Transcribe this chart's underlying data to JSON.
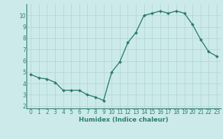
{
  "x": [
    0,
    1,
    2,
    3,
    4,
    5,
    6,
    7,
    8,
    9,
    10,
    11,
    12,
    13,
    14,
    15,
    16,
    17,
    18,
    19,
    20,
    21,
    22,
    23
  ],
  "y": [
    4.8,
    4.5,
    4.4,
    4.1,
    3.4,
    3.4,
    3.4,
    3.0,
    2.8,
    2.5,
    5.0,
    5.9,
    7.6,
    8.5,
    10.0,
    10.2,
    10.4,
    10.2,
    10.4,
    10.2,
    9.2,
    7.9,
    6.8,
    6.4
  ],
  "line_color": "#2d7d6e",
  "marker": "D",
  "markersize": 2.0,
  "linewidth": 1.0,
  "xlabel": "Humidex (Indice chaleur)",
  "xlim": [
    -0.5,
    23.5
  ],
  "ylim": [
    1.8,
    11.0
  ],
  "yticks": [
    2,
    3,
    4,
    5,
    6,
    7,
    8,
    9,
    10
  ],
  "xticks": [
    0,
    1,
    2,
    3,
    4,
    5,
    6,
    7,
    8,
    9,
    10,
    11,
    12,
    13,
    14,
    15,
    16,
    17,
    18,
    19,
    20,
    21,
    22,
    23
  ],
  "bg_color": "#cceaea",
  "grid_color": "#b5d5d5",
  "tick_color": "#2d7d6e",
  "label_color": "#2d7d6e",
  "tick_fontsize": 5.5,
  "xlabel_fontsize": 6.5
}
